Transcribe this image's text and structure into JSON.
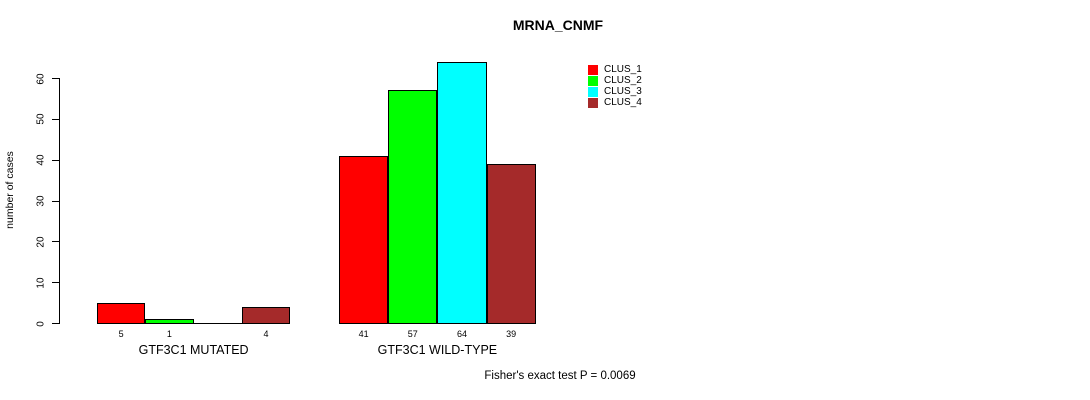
{
  "title": "MRNA_CNMF",
  "annotation": "Fisher's exact test P = 0.0069",
  "chart_data": {
    "type": "bar",
    "title": "MRNA_CNMF",
    "xlabel": "",
    "ylabel": "number of cases",
    "ylim": [
      0,
      60
    ],
    "yticks": [
      0,
      10,
      20,
      30,
      40,
      50,
      60
    ],
    "grid": false,
    "legend_position": "top-right",
    "background_color": "#ffffff",
    "bar_outline_color": "#000000",
    "series": [
      {
        "name": "CLUS_1",
        "color": "#ff0000"
      },
      {
        "name": "CLUS_2",
        "color": "#00ff00"
      },
      {
        "name": "CLUS_3",
        "color": "#00ffff"
      },
      {
        "name": "CLUS_4",
        "color": "#a52a2a"
      }
    ],
    "groups": [
      {
        "label": "GTF3C1 MUTATED",
        "values": [
          5,
          1,
          0,
          4
        ],
        "bar_labels": [
          "5",
          "1",
          "",
          "4"
        ]
      },
      {
        "label": "GTF3C1 WILD-TYPE",
        "values": [
          41,
          57,
          64,
          39
        ],
        "bar_labels": [
          "41",
          "57",
          "64",
          "39"
        ]
      }
    ],
    "annotation": "Fisher's exact test P = 0.0069"
  }
}
